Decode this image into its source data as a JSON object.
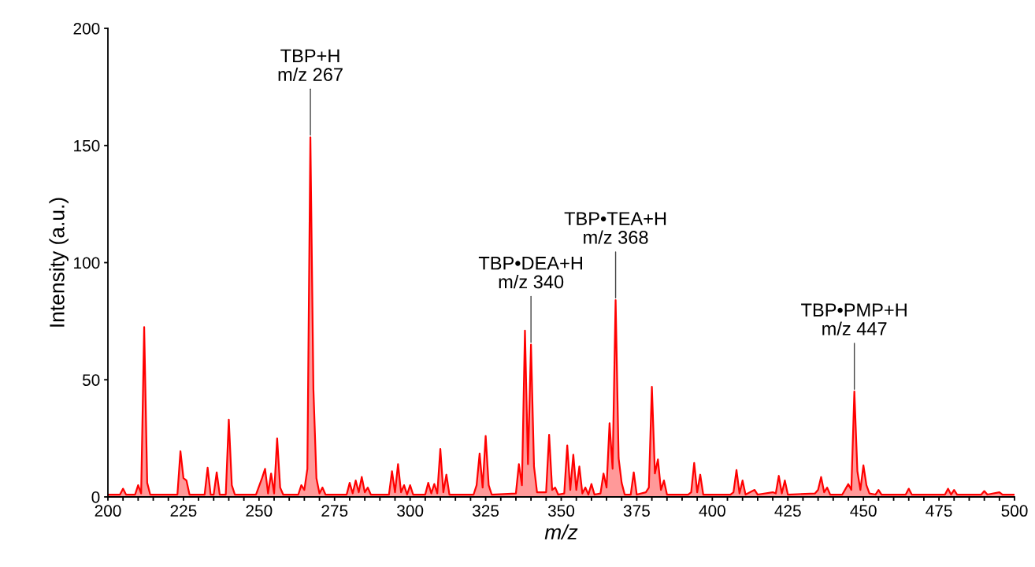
{
  "chart_data": {
    "type": "area",
    "xlabel": "m/z",
    "ylabel": "Intensity (a.u.)",
    "xlim": [
      200,
      500
    ],
    "ylim": [
      0,
      200
    ],
    "xticks": [
      200,
      {
        "value": 205,
        "label": null
      },
      {
        "value": 210,
        "label": null
      },
      {
        "value": 215,
        "label": null
      },
      {
        "value": 220,
        "label": null
      },
      225,
      {
        "value": 230,
        "label": null
      },
      {
        "value": 235,
        "label": null
      },
      {
        "value": 240,
        "label": null
      },
      {
        "value": 245,
        "label": null
      },
      250,
      {
        "value": 255,
        "label": null
      },
      {
        "value": 260,
        "label": null
      },
      {
        "value": 265,
        "label": null
      },
      {
        "value": 270,
        "label": null
      },
      275,
      {
        "value": 280,
        "label": null
      },
      {
        "value": 285,
        "label": null
      },
      {
        "value": 290,
        "label": null
      },
      {
        "value": 295,
        "label": null
      },
      300,
      {
        "value": 305,
        "label": null
      },
      {
        "value": 310,
        "label": null
      },
      {
        "value": 315,
        "label": null
      },
      {
        "value": 320,
        "label": null
      },
      325,
      {
        "value": 330,
        "label": null
      },
      {
        "value": 335,
        "label": null
      },
      {
        "value": 340,
        "label": null
      },
      {
        "value": 345,
        "label": null
      },
      350,
      {
        "value": 355,
        "label": null
      },
      {
        "value": 360,
        "label": null
      },
      {
        "value": 365,
        "label": null
      },
      {
        "value": 370,
        "label": null
      },
      375,
      {
        "value": 380,
        "label": null
      },
      {
        "value": 385,
        "label": null
      },
      {
        "value": 390,
        "label": null
      },
      {
        "value": 395,
        "label": null
      },
      400,
      {
        "value": 405,
        "label": null
      },
      {
        "value": 410,
        "label": null
      },
      {
        "value": 415,
        "label": null
      },
      {
        "value": 420,
        "label": null
      },
      425,
      {
        "value": 430,
        "label": null
      },
      {
        "value": 435,
        "label": null
      },
      {
        "value": 440,
        "label": null
      },
      {
        "value": 445,
        "label": null
      },
      450,
      {
        "value": 455,
        "label": null
      },
      {
        "value": 460,
        "label": null
      },
      {
        "value": 465,
        "label": null
      },
      {
        "value": 470,
        "label": null
      },
      475,
      {
        "value": 480,
        "label": null
      },
      {
        "value": 485,
        "label": null
      },
      {
        "value": 490,
        "label": null
      },
      {
        "value": 495,
        "label": null
      },
      500
    ],
    "yticks": [
      0,
      50,
      100,
      150,
      200
    ],
    "grid": false,
    "series": [
      {
        "color": "#ff0000",
        "x": [
          200,
          204,
          205,
          206,
          209,
          210,
          211,
          212,
          213,
          214,
          218,
          223,
          224,
          225,
          226,
          227,
          232,
          233,
          234,
          235,
          236,
          237,
          239,
          240,
          241,
          242,
          249,
          251,
          252,
          253,
          254,
          255,
          256,
          257,
          258,
          263,
          264,
          265,
          266,
          267,
          268,
          269,
          270,
          271,
          272,
          279,
          280,
          281,
          282,
          283,
          284,
          285,
          286,
          287,
          293,
          294,
          295,
          296,
          297,
          298,
          299,
          300,
          301,
          305,
          306,
          307,
          308,
          309,
          310,
          311,
          312,
          313,
          321,
          322,
          323,
          324,
          325,
          326,
          327,
          335,
          336,
          337,
          338,
          339,
          340,
          341,
          342,
          345,
          346,
          347,
          348,
          349,
          351,
          352,
          353,
          354,
          355,
          356,
          357,
          358,
          359,
          360,
          361,
          363,
          364,
          365,
          366,
          367,
          368,
          369,
          370,
          371,
          373,
          374,
          375,
          378,
          379,
          380,
          381,
          382,
          383,
          384,
          385,
          392,
          393,
          394,
          395,
          396,
          397,
          406,
          407,
          408,
          409,
          410,
          411,
          414,
          415,
          420,
          421,
          422,
          423,
          424,
          425,
          434,
          435,
          436,
          437,
          438,
          439,
          443,
          445,
          446,
          447,
          448,
          449,
          450,
          451,
          452,
          454,
          455,
          456,
          464,
          465,
          466,
          477,
          478,
          479,
          480,
          481,
          489,
          490,
          491,
          495,
          496,
          500
        ],
        "values": [
          1,
          1,
          3.5,
          1,
          1,
          5,
          1.5,
          72.5,
          6,
          1,
          1,
          1,
          19.5,
          8,
          7,
          1,
          1,
          12.5,
          1,
          1,
          10.5,
          1,
          1,
          33,
          5,
          1,
          1,
          8,
          12,
          1.5,
          10,
          1.5,
          25,
          4,
          1,
          1,
          5,
          3,
          12,
          153.5,
          46,
          8,
          1.5,
          4,
          1,
          1,
          6,
          1.5,
          7,
          2,
          8.5,
          2,
          4,
          1,
          1,
          11,
          2,
          14,
          2,
          5,
          1,
          5,
          1,
          1,
          6,
          1.5,
          5.5,
          1.5,
          20.5,
          2,
          9.5,
          1,
          1,
          5,
          18.5,
          4,
          26,
          5,
          1,
          1.5,
          14,
          5,
          71,
          14,
          65,
          13,
          2,
          2,
          26.5,
          3,
          4,
          1,
          1.5,
          22,
          3,
          18,
          3,
          13,
          1.5,
          4,
          1,
          5.5,
          1,
          1.5,
          10,
          4,
          31.5,
          12,
          84,
          16.5,
          6,
          1,
          1,
          10.5,
          1,
          2,
          4,
          47,
          10,
          16,
          3,
          7,
          1,
          1,
          2,
          14.5,
          2,
          9.5,
          1,
          1,
          2,
          11.5,
          1.5,
          7,
          1,
          3,
          1,
          2,
          1.5,
          9,
          1.5,
          7,
          1,
          1.5,
          3,
          8.5,
          2,
          4,
          1,
          1,
          5.5,
          3,
          45,
          11,
          3,
          13.5,
          5,
          1.5,
          1,
          3,
          1,
          1,
          3.5,
          1,
          1,
          3.5,
          1,
          3,
          1,
          1,
          2.5,
          1,
          2,
          1,
          1
        ]
      }
    ],
    "annotations": [
      {
        "text": "TBP+H\nm/z 267",
        "x": 267,
        "y": 153.5
      },
      {
        "text": "TBP•DEA+H\nm/z 340",
        "x": 340,
        "y": 65
      },
      {
        "text": "TBP•TEA+H\nm/z 368",
        "x": 368,
        "y": 84
      },
      {
        "text": "TBP•PMP+H\nm/z 447",
        "x": 447,
        "y": 45
      }
    ]
  }
}
